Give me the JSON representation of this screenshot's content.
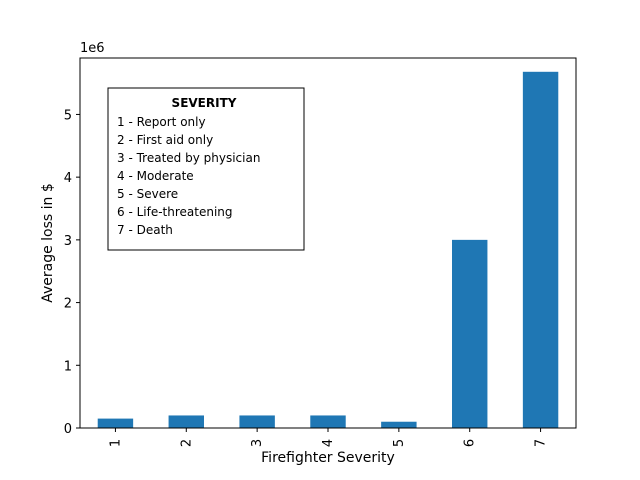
{
  "chart_data": {
    "type": "bar",
    "categories": [
      "1",
      "2",
      "3",
      "4",
      "5",
      "6",
      "7"
    ],
    "values": [
      150000,
      200000,
      200000,
      200000,
      100000,
      3000000,
      5680000
    ],
    "xlabel": "Firefighter Severity",
    "ylabel": "Average loss in $",
    "scale_label": "1e6",
    "ylim": [
      0,
      5900000
    ],
    "yticks": [
      0,
      1000000,
      2000000,
      3000000,
      4000000,
      5000000
    ],
    "ytick_labels": [
      "0",
      "1",
      "2",
      "3",
      "4",
      "5"
    ],
    "bar_color": "#1f77b4",
    "grid": false,
    "legend_box": {
      "title": "SEVERITY",
      "entries": [
        "1 - Report only",
        "2 - First aid only",
        "3 - Treated by physician",
        "4 - Moderate",
        "5 - Severe",
        "6 - Life-threatening",
        "7 - Death"
      ],
      "placement": "upper-left"
    }
  }
}
